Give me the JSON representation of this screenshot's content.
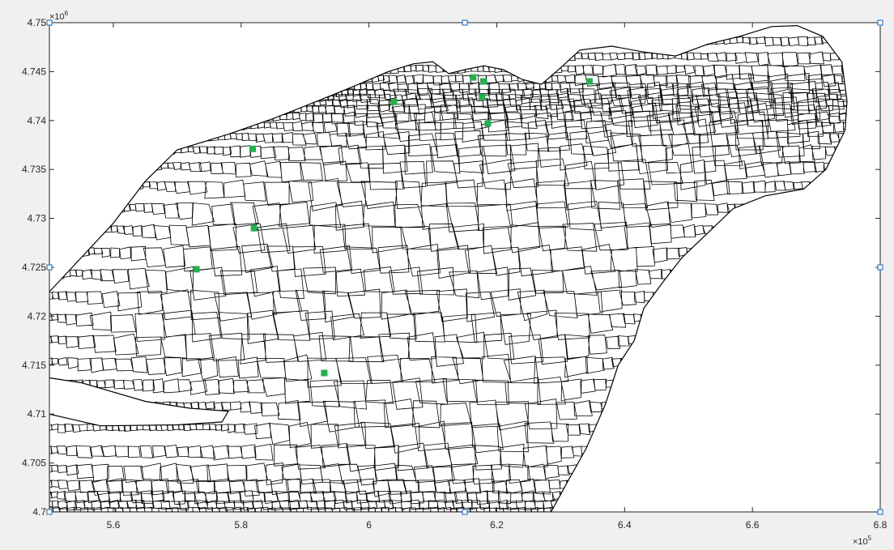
{
  "colors": {
    "figure_bg": "#f0f0f0",
    "axes_bg": "#ffffff",
    "axis": "#262626",
    "mesh": "#000000",
    "marker": "#22b14c",
    "handle_fill": "#ffffff",
    "handle_stroke": "#2f7fd1"
  },
  "chart_data": {
    "type": "scatter",
    "title": "",
    "xlabel": "",
    "ylabel": "",
    "grid": false,
    "xlim": [
      550000,
      680000
    ],
    "ylim": [
      4700000,
      4750000
    ],
    "x_ticks": [
      560000,
      580000,
      600000,
      620000,
      640000,
      660000,
      680000
    ],
    "x_tick_labels": [
      "5.6",
      "5.8",
      "6",
      "6.2",
      "6.4",
      "6.6",
      "6.8"
    ],
    "y_ticks": [
      4700000,
      4705000,
      4710000,
      4715000,
      4720000,
      4725000,
      4730000,
      4735000,
      4740000,
      4745000,
      4750000
    ],
    "y_tick_labels": [
      "4.7",
      "4.705",
      "4.71",
      "4.715",
      "4.72",
      "4.725",
      "4.73",
      "4.735",
      "4.74",
      "4.745",
      "4.75"
    ],
    "x_exponent_label": "×10",
    "x_exponent_power": "5",
    "y_exponent_label": "×10",
    "y_exponent_power": "6",
    "mesh_outline": [
      [
        550000,
        4722500
      ],
      [
        555000,
        4726000
      ],
      [
        560000,
        4729500
      ],
      [
        565000,
        4733800
      ],
      [
        570000,
        4737000
      ],
      [
        578000,
        4738600
      ],
      [
        585000,
        4740200
      ],
      [
        592000,
        4742000
      ],
      [
        598000,
        4743600
      ],
      [
        603000,
        4745000
      ],
      [
        607000,
        4745800
      ],
      [
        610000,
        4746000
      ],
      [
        612500,
        4744800
      ],
      [
        615000,
        4745200
      ],
      [
        618000,
        4745600
      ],
      [
        621000,
        4745200
      ],
      [
        624000,
        4744200
      ],
      [
        627000,
        4743700
      ],
      [
        630000,
        4745400
      ],
      [
        633000,
        4747200
      ],
      [
        638000,
        4747600
      ],
      [
        643000,
        4747000
      ],
      [
        648000,
        4746600
      ],
      [
        653000,
        4747800
      ],
      [
        658000,
        4748600
      ],
      [
        663000,
        4749600
      ],
      [
        667000,
        4749700
      ],
      [
        671000,
        4748600
      ],
      [
        674000,
        4746000
      ],
      [
        674800,
        4742000
      ],
      [
        674500,
        4739000
      ],
      [
        671500,
        4735000
      ],
      [
        668000,
        4733000
      ],
      [
        662000,
        4732300
      ],
      [
        657000,
        4731000
      ],
      [
        653000,
        4728500
      ],
      [
        649000,
        4726000
      ],
      [
        646000,
        4723500
      ],
      [
        643000,
        4720800
      ],
      [
        641500,
        4717500
      ],
      [
        639000,
        4715000
      ],
      [
        637000,
        4711000
      ],
      [
        634000,
        4706500
      ],
      [
        631000,
        4703000
      ],
      [
        628500,
        4700000
      ],
      [
        550000,
        4700000
      ],
      [
        550000,
        4710000
      ],
      [
        558000,
        4708800
      ],
      [
        570000,
        4708900
      ],
      [
        577000,
        4709200
      ],
      [
        578000,
        4710300
      ],
      [
        572000,
        4710600
      ],
      [
        565000,
        4711300
      ],
      [
        555000,
        4713200
      ],
      [
        550000,
        4713700
      ]
    ],
    "mesh_polygon_count": 5000,
    "series": [
      {
        "points": [
          [
            573000,
            4724800
          ],
          [
            582000,
            4729000
          ],
          [
            581800,
            4737100
          ],
          [
            593000,
            4714200
          ],
          [
            603900,
            4741900
          ],
          [
            616300,
            4744400
          ],
          [
            617900,
            4744000
          ],
          [
            617700,
            4742400
          ],
          [
            618600,
            4739700
          ],
          [
            634500,
            4744000
          ]
        ]
      }
    ]
  }
}
